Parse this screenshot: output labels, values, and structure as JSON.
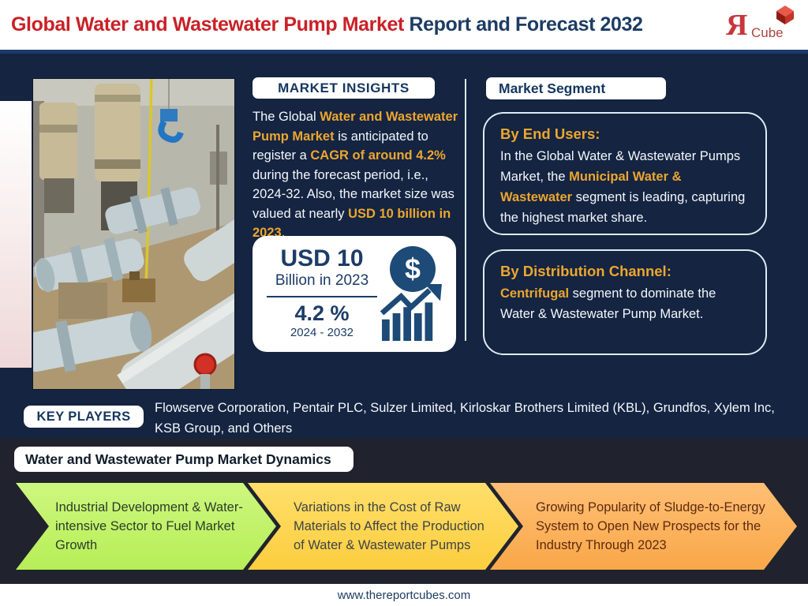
{
  "header": {
    "title_red": "Global Water and Wastewater Pump Market",
    "title_dark": " Report and Forecast 2032",
    "logo_r": "Я",
    "logo_word": "Cube"
  },
  "market_insights": {
    "label": "MARKET INSIGHTS",
    "paragraph": [
      {
        "t": "The Global ",
        "hl": false
      },
      {
        "t": "Water and Wastewater Pump Market",
        "hl": true
      },
      {
        "t": " is anticipated to register a ",
        "hl": false
      },
      {
        "t": "CAGR of around 4.2%",
        "hl": true
      },
      {
        "t": " during the forecast period, i.e., 2024-32. Also, the market size was valued at nearly ",
        "hl": false
      },
      {
        "t": "USD 10 billion in 2023",
        "hl": true
      },
      {
        "t": ".",
        "hl": false
      }
    ],
    "stat_card": {
      "value": "USD 10",
      "value_sub": "Billion in 2023",
      "cagr": "4.2 %",
      "period": "2024 - 2032",
      "dollar_glyph": "$"
    }
  },
  "market_segment": {
    "label": "Market Segment",
    "end_users": {
      "title": "By End Users:",
      "body": [
        {
          "t": "In the Global Water & Wastewater Pumps Market, the ",
          "hl": false
        },
        {
          "t": "Municipal Water & Wastewater",
          "hl": true
        },
        {
          "t": " segment is leading, capturing the highest market share.",
          "hl": false
        }
      ]
    },
    "distribution": {
      "title": "By Distribution Channel:",
      "body": [
        {
          "t": "Centrifugal",
          "hl": true
        },
        {
          "t": " segment to dominate the Water & Wastewater Pump Market.",
          "hl": false
        }
      ]
    }
  },
  "key_players": {
    "label": "KEY PLAYERS",
    "companies": "Flowserve Corporation, Pentair PLC, Sulzer Limited, Kirloskar Brothers Limited (KBL), Grundfos, Xylem Inc, KSB Group, and Others"
  },
  "dynamics": {
    "label": "Water and Wastewater Pump Market Dynamics",
    "arrows": [
      {
        "text": "Industrial Development & Water-intensive Sector to Fuel Market Growth",
        "color_top": "#cdf77f",
        "color_bottom": "#b7ee56",
        "text_color": "#2b3c2b"
      },
      {
        "text": "Variations in the Cost of Raw Materials to Affect the Production of Water & Wastewater Pumps",
        "color_top": "#ffdf6b",
        "color_bottom": "#fccd3e",
        "text_color": "#3d434a"
      },
      {
        "text": "Growing Popularity of Sludge-to-Energy System to Open New Prospects for the Industry Through 2023",
        "color_top": "#ffbf74",
        "color_bottom": "#f9a748",
        "text_color": "#5c2a12"
      }
    ]
  },
  "footer": {
    "url": "www.thereportcubes.com"
  },
  "colors": {
    "accent_orange": "#eca62f",
    "title_red": "#c92127",
    "title_navy": "#1d3c63",
    "navy_background": "#142441",
    "charcoal_background": "#20232e",
    "stat_navy": "#1c3c68"
  }
}
